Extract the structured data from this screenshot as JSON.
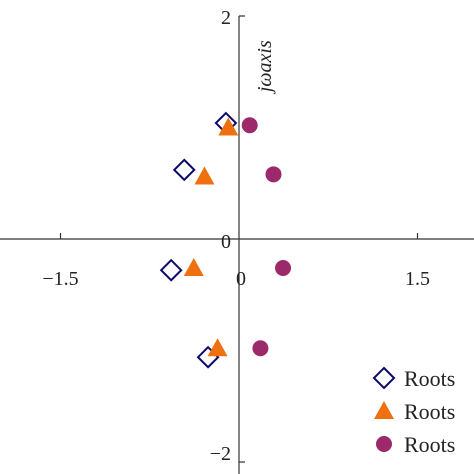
{
  "chart_data": {
    "type": "scatter",
    "title": "",
    "xlabel": "",
    "ylabel": "jωaxis",
    "xlim": [
      -2.1,
      2.0
    ],
    "ylim": [
      -2.0,
      2.0
    ],
    "x_ticks": [
      {
        "value": -1.5,
        "label": "−1.5"
      },
      {
        "value": 0,
        "label": "0"
      },
      {
        "value": 1.5,
        "label": "1.5"
      }
    ],
    "y_ticks": [
      {
        "value": 2,
        "label": "2"
      },
      {
        "value": 0,
        "label": "0"
      },
      {
        "value": -2,
        "label": "−2"
      }
    ],
    "grid": false,
    "legend": "bottom-right",
    "series": [
      {
        "name": "Roots",
        "marker": "diamond",
        "color": "#0a0a6b",
        "points": [
          {
            "x": -0.11,
            "y": 1.04
          },
          {
            "x": -0.46,
            "y": 0.62
          },
          {
            "x": -0.57,
            "y": -0.28
          },
          {
            "x": -0.26,
            "y": -1.06
          }
        ]
      },
      {
        "name": "Roots",
        "marker": "triangle",
        "color": "#f07010",
        "points": [
          {
            "x": -0.09,
            "y": 1.0
          },
          {
            "x": -0.29,
            "y": 0.56
          },
          {
            "x": -0.38,
            "y": -0.26
          },
          {
            "x": -0.18,
            "y": -0.98
          }
        ]
      },
      {
        "name": "Roots",
        "marker": "circle",
        "color": "#9c2a6a",
        "points": [
          {
            "x": 0.09,
            "y": 1.02
          },
          {
            "x": 0.29,
            "y": 0.58
          },
          {
            "x": 0.37,
            "y": -0.26
          },
          {
            "x": 0.18,
            "y": -0.98
          }
        ]
      }
    ]
  }
}
